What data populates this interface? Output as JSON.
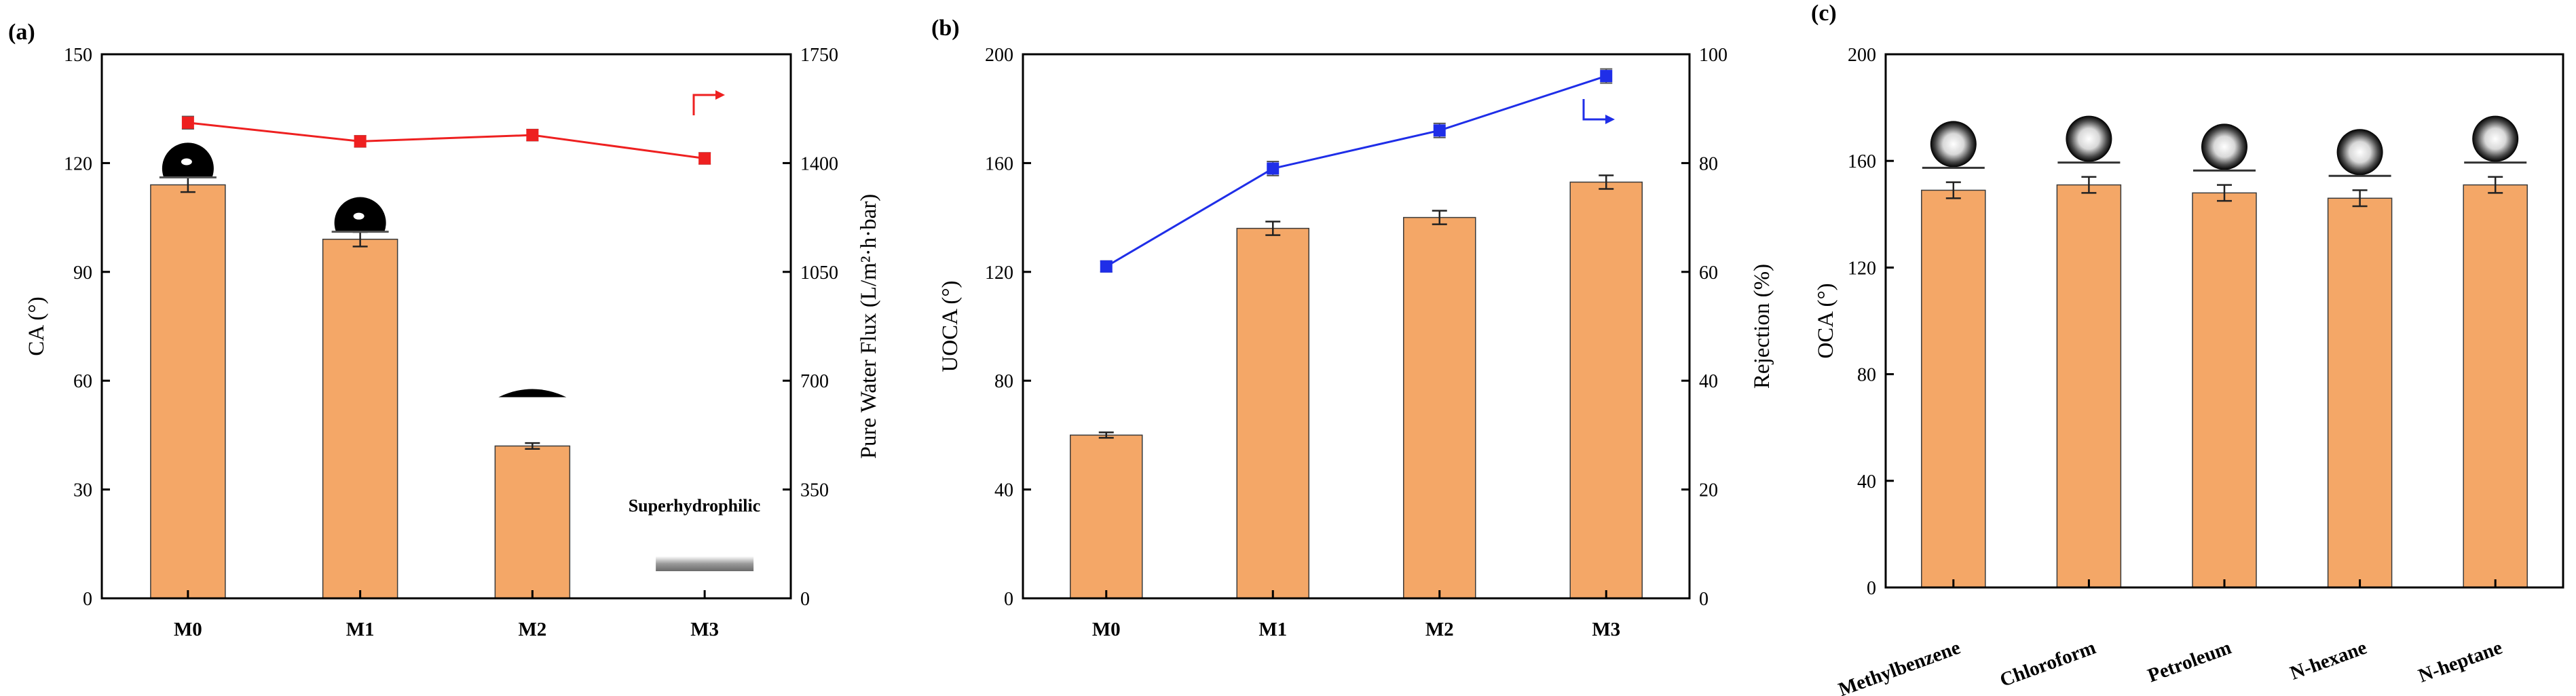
{
  "colors": {
    "bar": "#F4A767",
    "bar_edge": "#3a3a3a",
    "series_a": "#ee2020",
    "series_b": "#1f2ee8",
    "errorbar": "#222222"
  },
  "chart_data": [
    {
      "type": "bar",
      "panel_label": "(a)",
      "categories": [
        "M0",
        "M1",
        "M2",
        "M3"
      ],
      "values": [
        114,
        99,
        42,
        null
      ],
      "errors": [
        2,
        2,
        0.8,
        null
      ],
      "ylabel": "CA (°)",
      "ylim": [
        0,
        150
      ],
      "yticks": [
        0,
        30,
        60,
        90,
        120,
        150
      ],
      "secondary_series": {
        "type": "line",
        "values": [
          1530,
          1470,
          1490,
          1415
        ],
        "errors": [
          20,
          18,
          18,
          18
        ],
        "ylabel": "Pure Water Flux (L/m²·h·bar)",
        "ylim": [
          0,
          1750
        ],
        "yticks": [
          0,
          350,
          700,
          1050,
          1400,
          1750
        ]
      },
      "annotations": [
        "Superhydrophilic"
      ],
      "droplets": [
        "high-contact-angle",
        "high-contact-angle",
        "low-contact-angle",
        "spread-film"
      ]
    },
    {
      "type": "bar",
      "panel_label": "(b)",
      "categories": [
        "M0",
        "M1",
        "M2",
        "M3"
      ],
      "values": [
        60,
        136,
        140,
        153
      ],
      "errors": [
        1,
        2.5,
        2.5,
        2.5
      ],
      "ylabel": "UOCA (°)",
      "ylim": [
        0,
        200
      ],
      "yticks": [
        0,
        40,
        80,
        120,
        160,
        200
      ],
      "secondary_series": {
        "type": "line",
        "values": [
          61,
          79,
          86,
          96
        ],
        "errors": [
          1,
          1.3,
          1.3,
          1.3
        ],
        "ylabel": "Rejection (%)",
        "ylim": [
          0,
          100
        ],
        "yticks": [
          0,
          20,
          40,
          60,
          80,
          100
        ]
      }
    },
    {
      "type": "bar",
      "panel_label": "(c)",
      "categories": [
        "Methylbenzene",
        "Chloroform",
        "Petroleum",
        "N-hexane",
        "N-heptane"
      ],
      "values": [
        149,
        151,
        148,
        146,
        151
      ],
      "errors": [
        3,
        3,
        3,
        3,
        3
      ],
      "ylabel": "OCA (°)",
      "ylim": [
        0,
        200
      ],
      "yticks": [
        0,
        40,
        80,
        120,
        160,
        200
      ],
      "droplets": [
        "oil-droplet",
        "oil-droplet",
        "oil-droplet",
        "oil-droplet",
        "oil-droplet"
      ]
    }
  ]
}
